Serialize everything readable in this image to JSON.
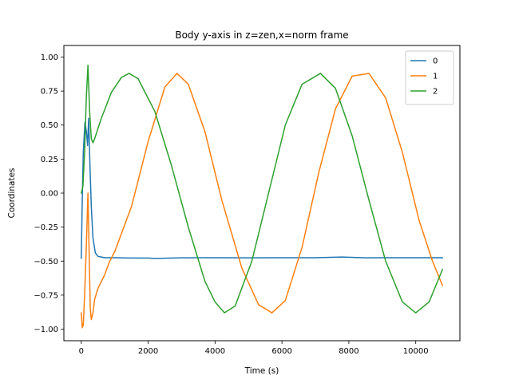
{
  "chart_data": {
    "type": "line",
    "title": "Body y-axis in z=zen,x=norm frame",
    "xlabel": "Time (s)",
    "ylabel": "Coordinates",
    "xlim": [
      -520,
      11320
    ],
    "ylim": [
      -1.085,
      1.085
    ],
    "xticks": [
      0,
      2000,
      4000,
      6000,
      8000,
      10000
    ],
    "xtick_labels": [
      "0",
      "2000",
      "4000",
      "6000",
      "8000",
      "10000"
    ],
    "yticks": [
      -1.0,
      -0.75,
      -0.5,
      -0.25,
      0.0,
      0.25,
      0.5,
      0.75,
      1.0
    ],
    "ytick_labels": [
      "−1.00",
      "−0.75",
      "−0.50",
      "−0.25",
      "0.00",
      "0.25",
      "0.50",
      "0.75",
      "1.00"
    ],
    "grid": false,
    "legend_position": "top-right",
    "series": [
      {
        "name": "0",
        "color": "#1f77b4",
        "points": [
          [
            0,
            -0.48
          ],
          [
            30,
            -0.05
          ],
          [
            60,
            0.3
          ],
          [
            110,
            0.52
          ],
          [
            150,
            0.46
          ],
          [
            190,
            0.35
          ],
          [
            220,
            0.55
          ],
          [
            260,
            0.2
          ],
          [
            300,
            -0.1
          ],
          [
            350,
            -0.33
          ],
          [
            420,
            -0.44
          ],
          [
            500,
            -0.465
          ],
          [
            700,
            -0.475
          ],
          [
            1000,
            -0.475
          ],
          [
            1500,
            -0.477
          ],
          [
            2000,
            -0.477
          ],
          [
            2200,
            -0.48
          ],
          [
            3000,
            -0.476
          ],
          [
            4000,
            -0.475
          ],
          [
            5000,
            -0.476
          ],
          [
            6000,
            -0.475
          ],
          [
            7000,
            -0.475
          ],
          [
            7800,
            -0.47
          ],
          [
            8500,
            -0.476
          ],
          [
            9000,
            -0.475
          ],
          [
            10000,
            -0.475
          ],
          [
            10800,
            -0.475
          ]
        ]
      },
      {
        "name": "1",
        "color": "#ff7f0e",
        "points": [
          [
            0,
            -0.88
          ],
          [
            30,
            -0.99
          ],
          [
            60,
            -0.97
          ],
          [
            100,
            -0.75
          ],
          [
            150,
            -0.4
          ],
          [
            200,
            0.0
          ],
          [
            240,
            -0.5
          ],
          [
            270,
            -0.85
          ],
          [
            300,
            -0.93
          ],
          [
            350,
            -0.88
          ],
          [
            400,
            -0.78
          ],
          [
            500,
            -0.7
          ],
          [
            700,
            -0.6
          ],
          [
            850,
            -0.5
          ],
          [
            1000,
            -0.43
          ],
          [
            1500,
            -0.1
          ],
          [
            2000,
            0.38
          ],
          [
            2500,
            0.78
          ],
          [
            2860,
            0.88
          ],
          [
            3200,
            0.8
          ],
          [
            3700,
            0.45
          ],
          [
            4200,
            -0.05
          ],
          [
            4800,
            -0.55
          ],
          [
            5300,
            -0.82
          ],
          [
            5700,
            -0.88
          ],
          [
            6100,
            -0.79
          ],
          [
            6600,
            -0.4
          ],
          [
            7100,
            0.15
          ],
          [
            7600,
            0.62
          ],
          [
            8100,
            0.86
          ],
          [
            8600,
            0.88
          ],
          [
            9100,
            0.7
          ],
          [
            9600,
            0.3
          ],
          [
            10100,
            -0.2
          ],
          [
            10500,
            -0.5
          ],
          [
            10800,
            -0.68
          ]
        ]
      },
      {
        "name": "2",
        "color": "#2ca02c",
        "points": [
          [
            0,
            0.0
          ],
          [
            50,
            0.05
          ],
          [
            100,
            0.3
          ],
          [
            150,
            0.7
          ],
          [
            200,
            0.94
          ],
          [
            250,
            0.6
          ],
          [
            300,
            0.4
          ],
          [
            350,
            0.37
          ],
          [
            400,
            0.4
          ],
          [
            600,
            0.55
          ],
          [
            900,
            0.74
          ],
          [
            1200,
            0.85
          ],
          [
            1430,
            0.88
          ],
          [
            1700,
            0.84
          ],
          [
            2200,
            0.6
          ],
          [
            2700,
            0.2
          ],
          [
            3200,
            -0.25
          ],
          [
            3700,
            -0.65
          ],
          [
            4000,
            -0.8
          ],
          [
            4280,
            -0.88
          ],
          [
            4600,
            -0.83
          ],
          [
            5100,
            -0.5
          ],
          [
            5600,
            0.0
          ],
          [
            6100,
            0.5
          ],
          [
            6600,
            0.8
          ],
          [
            7150,
            0.88
          ],
          [
            7600,
            0.77
          ],
          [
            8100,
            0.42
          ],
          [
            8600,
            -0.05
          ],
          [
            9100,
            -0.5
          ],
          [
            9600,
            -0.8
          ],
          [
            10000,
            -0.88
          ],
          [
            10400,
            -0.8
          ],
          [
            10800,
            -0.56
          ]
        ]
      }
    ]
  }
}
